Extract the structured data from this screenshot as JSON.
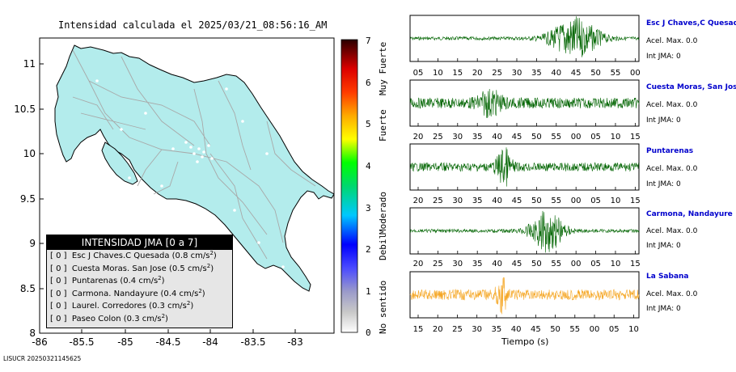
{
  "title": "Intensidad calculada el 2025/03/21_08:56:16_AM",
  "footer": "LISUCR 20250321145625",
  "colors": {
    "land": "#b3ecec",
    "roads": "#a8a8a8",
    "border": "#000000",
    "trace_green": "#006400",
    "trace_orange": "#f5a623",
    "station_name": "#0000cc"
  },
  "legend": {
    "title": "INTENSIDAD JMA [0 a 7]",
    "items": [
      {
        "code": "[ 0 ]",
        "text": "Esc J Chaves.C Quesada (0.8 cm/s",
        "sup": "2",
        "tail": ")"
      },
      {
        "code": "[ 0 ]",
        "text": "Cuesta Moras. San Jose (0.5 cm/s",
        "sup": "2",
        "tail": ")"
      },
      {
        "code": "[ 0 ]",
        "text": "Puntarenas (0.4 cm/s",
        "sup": "2",
        "tail": ")"
      },
      {
        "code": "[ 0 ]",
        "text": "Carmona. Nandayure (0.4 cm/s",
        "sup": "2",
        "tail": ")"
      },
      {
        "code": "[ 0 ]",
        "text": "Laurel. Corredores (0.3 cm/s",
        "sup": "2",
        "tail": ")"
      },
      {
        "code": "[ 0 ]",
        "text": "Paseo Colon (0.3 cm/s",
        "sup": "2",
        "tail": ")"
      }
    ]
  },
  "scale": {
    "levels": [
      "0",
      "1",
      "2",
      "3",
      "4",
      "5",
      "6",
      "7"
    ],
    "labels": [
      "No sentido",
      "Debil",
      "Moderado",
      "Fuerte",
      "Muy Fuerte"
    ]
  },
  "seismograms": {
    "xlabel": "Tiempo (s)",
    "stations": [
      {
        "name": "Esc J Chaves,C Quesada",
        "acel": "Acel. Max. 0.0",
        "int": "Int JMA: 0",
        "ticks": [
          "05",
          "10",
          "15",
          "20",
          "25",
          "30",
          "35",
          "40",
          "45",
          "50",
          "55",
          "00"
        ],
        "color": "green",
        "burst_center": 0.72,
        "burst_width": 0.1,
        "burst_amp": 0.95,
        "noise": 0.08
      },
      {
        "name": "Cuesta Moras, San Jose",
        "acel": "Acel. Max. 0.0",
        "int": "Int JMA: 0",
        "ticks": [
          "20",
          "25",
          "30",
          "35",
          "40",
          "45",
          "50",
          "55",
          "00",
          "05",
          "10",
          "15"
        ],
        "color": "green",
        "burst_center": 0.35,
        "burst_width": 0.05,
        "burst_amp": 0.5,
        "noise": 0.25
      },
      {
        "name": "Puntarenas",
        "acel": "Acel. Max. 0.0",
        "int": "Int JMA: 0",
        "ticks": [
          "20",
          "25",
          "30",
          "35",
          "40",
          "45",
          "50",
          "55",
          "00",
          "05",
          "10",
          "15"
        ],
        "color": "green",
        "burst_center": 0.41,
        "burst_width": 0.03,
        "burst_amp": 0.85,
        "noise": 0.2
      },
      {
        "name": "Carmona, Nandayure",
        "acel": "Acel. Max. 0.0",
        "int": "Int JMA: 0",
        "ticks": [
          "20",
          "25",
          "30",
          "35",
          "40",
          "45",
          "50",
          "55",
          "00",
          "05",
          "10",
          "15"
        ],
        "color": "green",
        "burst_center": 0.6,
        "burst_width": 0.07,
        "burst_amp": 0.95,
        "noise": 0.08
      },
      {
        "name": "La Sabana",
        "acel": "Acel. Max. 0.0",
        "int": "Int JMA: 0",
        "ticks": [
          "15",
          "20",
          "25",
          "30",
          "35",
          "40",
          "45",
          "50",
          "55",
          "00",
          "05",
          "10"
        ],
        "color": "orange",
        "burst_center": 0.4,
        "burst_width": 0.02,
        "burst_amp": 0.9,
        "noise": 0.25
      }
    ]
  },
  "chart_data": {
    "type": "scatter",
    "title": "Intensidad calculada el 2025/03/21_08:56:16_AM",
    "xlabel": "",
    "ylabel": "",
    "xlim": [
      -86,
      -82.5
    ],
    "ylim": [
      8,
      11.35
    ],
    "x_ticks": [
      "-86",
      "-85.5",
      "-85",
      "-84.5",
      "-84",
      "-83.5",
      "-83"
    ],
    "y_ticks": [
      "8",
      "8.5",
      "9",
      "9.5",
      "10",
      "10.5",
      "11"
    ],
    "colorbar": {
      "range": [
        0,
        7
      ],
      "ticks": [
        "0",
        "1",
        "2",
        "3",
        "4",
        "5",
        "6",
        "7"
      ],
      "labels": [
        "No sentido",
        "Debil",
        "Moderado",
        "Fuerte",
        "Muy Fuerte"
      ]
    },
    "stations": [
      {
        "name": "Esc J Chaves.C Quesada",
        "intensity": 0,
        "acel": 0.8
      },
      {
        "name": "Cuesta Moras. San Jose",
        "intensity": 0,
        "acel": 0.5
      },
      {
        "name": "Puntarenas",
        "intensity": 0,
        "acel": 0.4
      },
      {
        "name": "Carmona. Nandayure",
        "intensity": 0,
        "acel": 0.4
      },
      {
        "name": "Laurel. Corredores",
        "intensity": 0,
        "acel": 0.3
      },
      {
        "name": "Paseo Colon",
        "intensity": 0,
        "acel": 0.3
      }
    ]
  }
}
